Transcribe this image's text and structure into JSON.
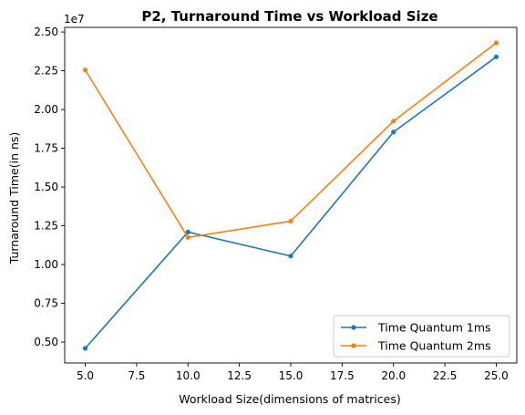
{
  "chart_data": {
    "type": "line",
    "title": "P2, Turnaround Time vs Workload Size",
    "xlabel": "Workload Size(dimensions of matrices)",
    "ylabel": "Turnaround Time(in ns)",
    "y_offset_text": "1e7",
    "x": [
      5,
      10,
      15,
      20,
      25
    ],
    "series": [
      {
        "name": "Time Quantum 1ms",
        "color": "#1f77b4",
        "values": [
          4600000,
          12100000,
          10550000,
          18550000,
          23400000
        ]
      },
      {
        "name": "Time Quantum 2ms",
        "color": "#ff7f0e",
        "values": [
          22550000,
          11750000,
          12800000,
          19250000,
          24300000
        ]
      }
    ],
    "xlim": [
      4,
      26
    ],
    "ylim": [
      3650000,
      25300000
    ],
    "xticks": [
      5.0,
      7.5,
      10.0,
      12.5,
      15.0,
      17.5,
      20.0,
      22.5,
      25.0
    ],
    "xtick_labels": [
      "5.0",
      "7.5",
      "10.0",
      "12.5",
      "15.0",
      "17.5",
      "20.0",
      "22.5",
      "25.0"
    ],
    "yticks": [
      5000000,
      7500000,
      10000000,
      12500000,
      15000000,
      17500000,
      20000000,
      22500000,
      25000000
    ],
    "ytick_labels": [
      "0.50",
      "0.75",
      "1.00",
      "1.25",
      "1.50",
      "1.75",
      "2.00",
      "2.25",
      "2.50"
    ],
    "grid": false,
    "legend_position": "lower-right"
  }
}
